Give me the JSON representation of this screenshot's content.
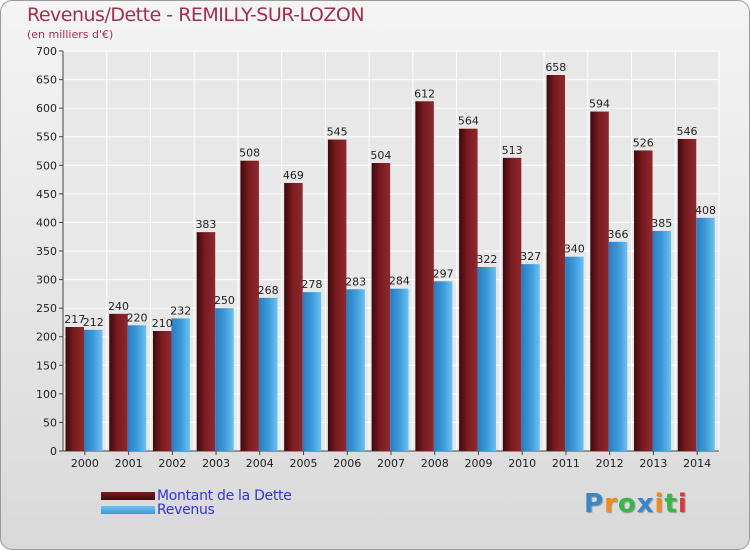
{
  "header": {
    "title": "Revenus/Dette - REMILLY-SUR-LOZON",
    "subtitle": "(en milliers d'€)"
  },
  "colors": {
    "dette": "#7a1a1f",
    "revenus": "#3b9ad9",
    "title": "#a0304a",
    "legend_text": "#3333dd"
  },
  "legend": {
    "dette_label": "Montant de la Dette",
    "revenus_label": "Revenus"
  },
  "logo": {
    "text": "Proxiti",
    "letters": [
      "P",
      "r",
      "o",
      "x",
      "i",
      "t",
      "i"
    ],
    "letter_colors": [
      "#3a86c8",
      "#f08a1c",
      "#3ab54a",
      "#3a86c8",
      "#f08a1c",
      "#3ab54a",
      "#d83a3a"
    ]
  },
  "chart_data": {
    "type": "bar",
    "title": "Revenus/Dette - REMILLY-SUR-LOZON",
    "subtitle": "(en milliers d'€)",
    "categories": [
      "2000",
      "2001",
      "2002",
      "2003",
      "2004",
      "2005",
      "2006",
      "2007",
      "2008",
      "2009",
      "2010",
      "2011",
      "2012",
      "2013",
      "2014"
    ],
    "series": [
      {
        "name": "Montant de la Dette",
        "values": [
          217,
          240,
          210,
          383,
          508,
          469,
          545,
          504,
          612,
          564,
          513,
          658,
          594,
          526,
          546
        ]
      },
      {
        "name": "Revenus",
        "values": [
          212,
          220,
          232,
          250,
          268,
          278,
          283,
          284,
          297,
          322,
          327,
          340,
          366,
          385,
          408
        ]
      }
    ],
    "ylim": [
      0,
      700
    ],
    "yticks": [
      "0",
      "50",
      "100",
      "150",
      "200",
      "250",
      "300",
      "350",
      "400",
      "450",
      "500",
      "550",
      "600",
      "650",
      "700"
    ],
    "grid": true,
    "legend_position": "bottom-left"
  }
}
